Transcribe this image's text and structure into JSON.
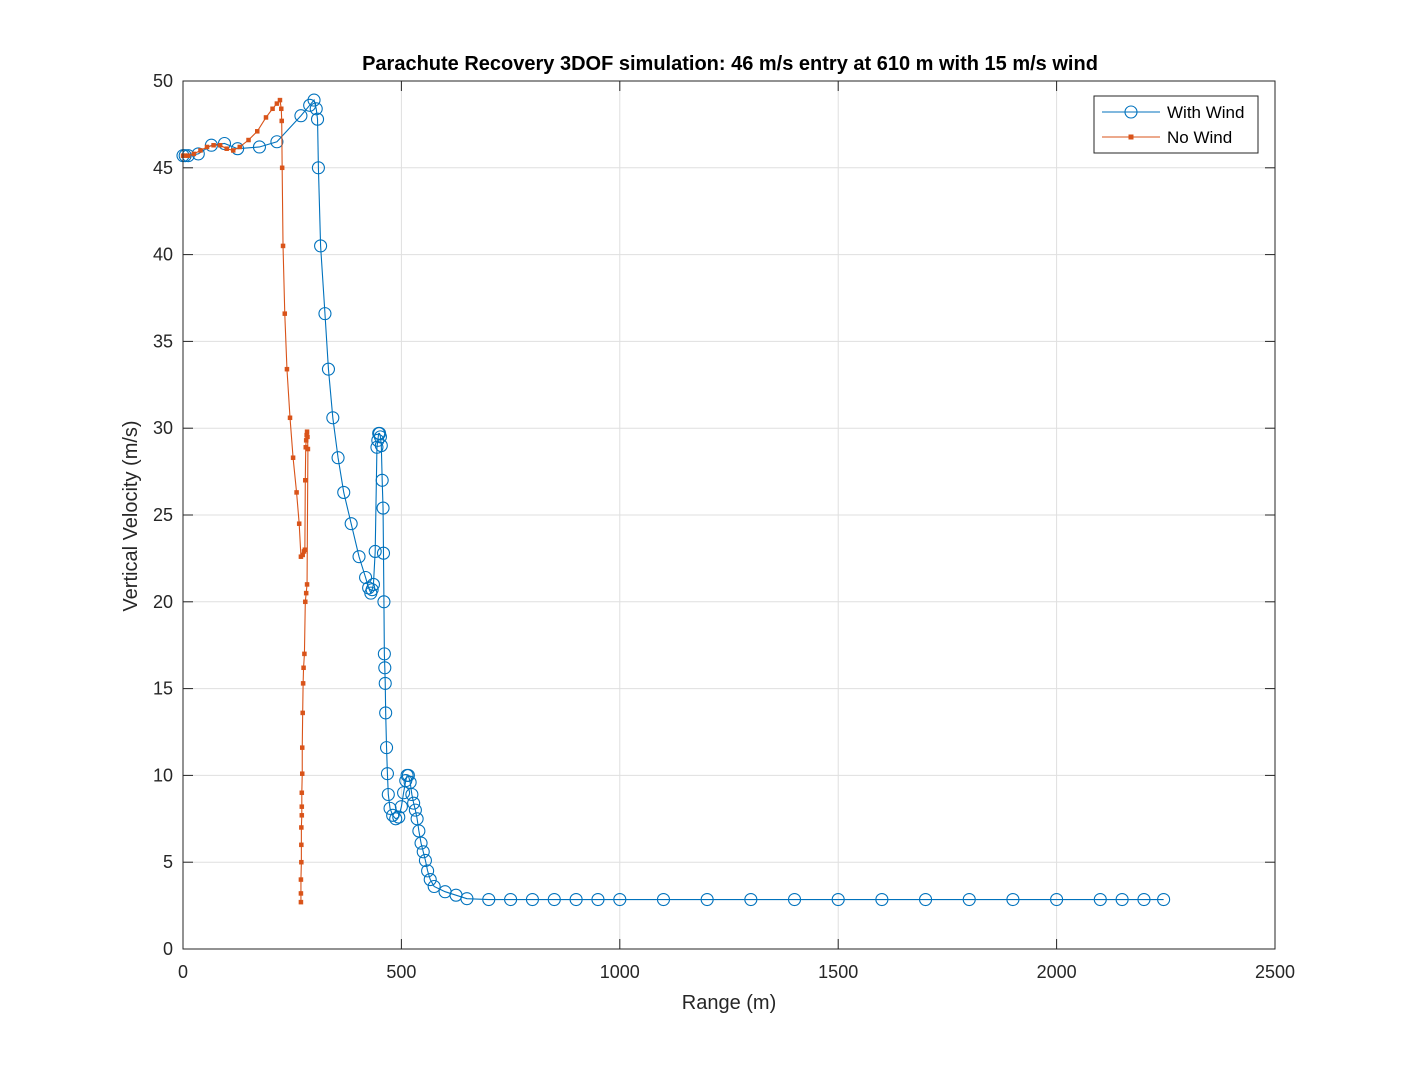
{
  "chart_data": {
    "type": "line",
    "title": "Parachute Recovery 3DOF simulation: 46 m/s entry at 610 m with 15 m/s wind",
    "xlabel": "Range (m)",
    "ylabel": "Vertical Velocity (m/s)",
    "xlim": [
      0,
      2500
    ],
    "ylim": [
      0,
      50
    ],
    "xticks": [
      0,
      500,
      1000,
      1500,
      2000,
      2500
    ],
    "yticks": [
      0,
      5,
      10,
      15,
      20,
      25,
      30,
      35,
      40,
      45,
      50
    ],
    "grid": true,
    "legend_position": "top-right",
    "series": [
      {
        "name": "With Wind",
        "color": "#0072BD",
        "marker": "circle",
        "x": [
          0,
          5,
          12,
          35,
          65,
          95,
          125,
          175,
          215,
          270,
          290,
          300,
          305,
          308,
          310,
          315,
          325,
          333,
          343,
          355,
          368,
          385,
          403,
          418,
          425,
          430,
          433,
          436,
          440,
          444,
          446,
          448,
          450,
          452,
          454,
          456,
          458,
          459,
          460,
          461,
          462,
          463,
          464,
          466,
          468,
          470,
          474,
          480,
          487,
          494,
          500,
          505,
          510,
          513,
          516,
          520,
          524,
          528,
          532,
          536,
          540,
          545,
          550,
          555,
          560,
          566,
          575,
          600,
          625,
          650,
          700,
          750,
          800,
          850,
          900,
          950,
          1000,
          1100,
          1200,
          1300,
          1400,
          1500,
          1600,
          1700,
          1800,
          1900,
          2000,
          2100,
          2150,
          2200,
          2245
        ],
        "y": [
          45.7,
          45.7,
          45.7,
          45.8,
          46.3,
          46.4,
          46.1,
          46.2,
          46.5,
          48.0,
          48.6,
          48.9,
          48.4,
          47.8,
          45.0,
          40.5,
          36.6,
          33.4,
          30.6,
          28.3,
          26.3,
          24.5,
          22.6,
          21.4,
          20.8,
          20.5,
          20.7,
          21.0,
          22.9,
          28.9,
          29.3,
          29.7,
          29.7,
          29.5,
          29.0,
          27.0,
          25.4,
          22.8,
          20.0,
          17.0,
          16.2,
          15.3,
          13.6,
          11.6,
          10.1,
          8.9,
          8.1,
          7.7,
          7.5,
          7.6,
          8.2,
          9.0,
          9.7,
          10.0,
          10.0,
          9.6,
          8.9,
          8.4,
          8.0,
          7.5,
          6.8,
          6.1,
          5.6,
          5.1,
          4.5,
          4.0,
          3.6,
          3.3,
          3.1,
          2.9,
          2.85,
          2.85,
          2.85,
          2.85,
          2.85,
          2.85,
          2.85,
          2.85,
          2.85,
          2.85,
          2.85,
          2.85,
          2.85,
          2.85,
          2.85,
          2.85,
          2.85,
          2.85,
          2.85,
          2.85,
          2.85
        ]
      },
      {
        "name": "No Wind",
        "color": "#D95319",
        "marker": "square",
        "x": [
          0,
          5,
          12,
          25,
          40,
          55,
          70,
          85,
          100,
          115,
          130,
          150,
          170,
          190,
          205,
          215,
          222,
          225,
          226,
          227,
          229,
          233,
          238,
          245,
          252,
          260,
          266,
          270,
          274,
          277,
          279,
          280,
          281,
          282,
          283,
          284,
          285,
          286,
          284,
          282,
          280,
          278,
          276,
          275,
          274,
          273,
          273,
          272,
          272,
          272,
          271,
          271,
          271,
          270,
          270,
          270
        ],
        "y": [
          45.7,
          45.7,
          45.7,
          45.8,
          46.0,
          46.2,
          46.3,
          46.3,
          46.1,
          46.0,
          46.2,
          46.6,
          47.1,
          47.9,
          48.4,
          48.7,
          48.9,
          48.4,
          47.7,
          45.0,
          40.5,
          36.6,
          33.4,
          30.6,
          28.3,
          26.3,
          24.5,
          22.6,
          22.7,
          22.9,
          23.0,
          27.0,
          28.9,
          29.3,
          29.6,
          29.8,
          29.5,
          28.8,
          21.0,
          20.5,
          20.0,
          17.0,
          16.2,
          15.3,
          13.6,
          11.6,
          10.1,
          9.0,
          8.2,
          7.7,
          7.0,
          6.0,
          5.0,
          4.0,
          3.2,
          2.7
        ]
      }
    ]
  }
}
